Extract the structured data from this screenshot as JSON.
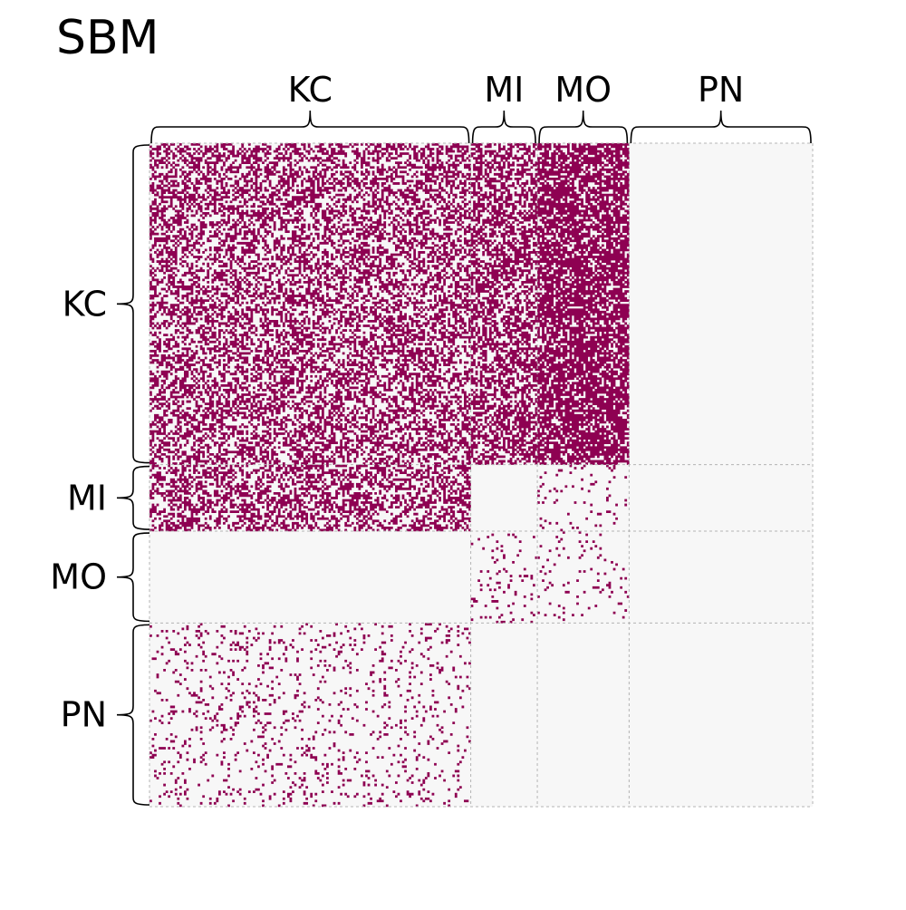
{
  "chart_data": {
    "type": "heatmap",
    "title": "SBM",
    "blocks": [
      "KC",
      "MI",
      "MO",
      "PN"
    ],
    "block_sizes": [
      140,
      29,
      40,
      80
    ],
    "edge_probability": {
      "rows": [
        "KC",
        "MI",
        "MO",
        "PN"
      ],
      "cols": [
        "KC",
        "MI",
        "MO",
        "PN"
      ],
      "values": [
        [
          0.46,
          0.55,
          0.72,
          0.0
        ],
        [
          0.46,
          0.0,
          0.05,
          0.0
        ],
        [
          0.0,
          0.07,
          0.06,
          0.0
        ],
        [
          0.09,
          0.0,
          0.0,
          0.0
        ]
      ]
    },
    "top_labels": [
      "KC",
      "MI",
      "MO",
      "PN"
    ],
    "left_labels": [
      "KC",
      "MI",
      "MO",
      "PN"
    ],
    "grid": true,
    "colors": {
      "edge": "#8e0152",
      "background": "#f7f7f7",
      "grid": "#b4b4b4",
      "brace": "#000000"
    }
  }
}
